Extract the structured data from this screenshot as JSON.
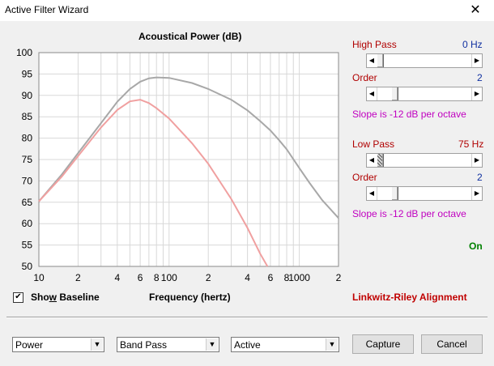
{
  "window": {
    "title": "Active Filter Wizard",
    "close_glyph": "✕"
  },
  "chart_data": {
    "type": "line",
    "title": "Acoustical Power (dB)",
    "xlabel": "Frequency (hertz)",
    "ylabel": "",
    "xscale": "log",
    "xlim": [
      10,
      2000
    ],
    "ylim": [
      50,
      100
    ],
    "y_ticks": [
      50,
      55,
      60,
      65,
      70,
      75,
      80,
      85,
      90,
      95,
      100
    ],
    "x_tick_labels": [
      {
        "x": 10,
        "label": "10"
      },
      {
        "x": 20,
        "label": "2"
      },
      {
        "x": 40,
        "label": "4"
      },
      {
        "x": 60,
        "label": "6"
      },
      {
        "x": 80,
        "label": "8"
      },
      {
        "x": 100,
        "label": "100"
      },
      {
        "x": 200,
        "label": "2"
      },
      {
        "x": 400,
        "label": "4"
      },
      {
        "x": 600,
        "label": "6"
      },
      {
        "x": 800,
        "label": "8"
      },
      {
        "x": 1000,
        "label": "1000"
      },
      {
        "x": 2000,
        "label": "2"
      }
    ],
    "grid": true,
    "series": [
      {
        "color": "#a8a8a8",
        "points": [
          [
            10,
            65.2
          ],
          [
            15,
            71.5
          ],
          [
            20,
            76.5
          ],
          [
            30,
            83.5
          ],
          [
            40,
            88.5
          ],
          [
            50,
            91.5
          ],
          [
            60,
            93.2
          ],
          [
            70,
            94.0
          ],
          [
            80,
            94.2
          ],
          [
            100,
            94.1
          ],
          [
            150,
            92.9
          ],
          [
            200,
            91.5
          ],
          [
            300,
            89.0
          ],
          [
            400,
            86.5
          ],
          [
            500,
            84.0
          ],
          [
            600,
            81.8
          ],
          [
            700,
            79.5
          ],
          [
            800,
            77.4
          ],
          [
            1000,
            73.0
          ],
          [
            1200,
            69.5
          ],
          [
            1500,
            65.5
          ],
          [
            2000,
            61.3
          ]
        ]
      },
      {
        "color": "#f0a0a0",
        "points": [
          [
            10,
            65.2
          ],
          [
            15,
            71.0
          ],
          [
            20,
            75.8
          ],
          [
            30,
            82.5
          ],
          [
            40,
            86.6
          ],
          [
            50,
            88.6
          ],
          [
            60,
            89.0
          ],
          [
            70,
            88.2
          ],
          [
            80,
            87.0
          ],
          [
            100,
            84.6
          ],
          [
            150,
            78.8
          ],
          [
            200,
            74.0
          ],
          [
            300,
            65.8
          ],
          [
            400,
            59.0
          ],
          [
            500,
            53.0
          ],
          [
            570,
            50.0
          ]
        ]
      }
    ]
  },
  "controls": {
    "high_pass": {
      "label": "High Pass",
      "value": "0 Hz",
      "position": 0.0
    },
    "high_order": {
      "label": "Order",
      "value": "2",
      "position": 0.2
    },
    "high_slope": "Slope is -12 dB per octave",
    "low_pass": {
      "label": "Low Pass",
      "value": "75 Hz",
      "position": 0.05
    },
    "low_order": {
      "label": "Order",
      "value": "2",
      "position": 0.2
    },
    "low_slope": "Slope is -12 dB per octave",
    "status": "On"
  },
  "show_baseline": {
    "label_pre": "Sho",
    "label_underlined": "w",
    "label_post": " Baseline",
    "checked": "✔"
  },
  "alignment": "Linkwitz-Riley Alignment",
  "bottom": {
    "select_mode": "Power",
    "select_type": "Band Pass",
    "select_kind": "Active",
    "capture": "Capture",
    "cancel": "Cancel"
  },
  "icons": {
    "dropdown": "▼",
    "left_arrow": "◀",
    "right_arrow": "▶"
  }
}
